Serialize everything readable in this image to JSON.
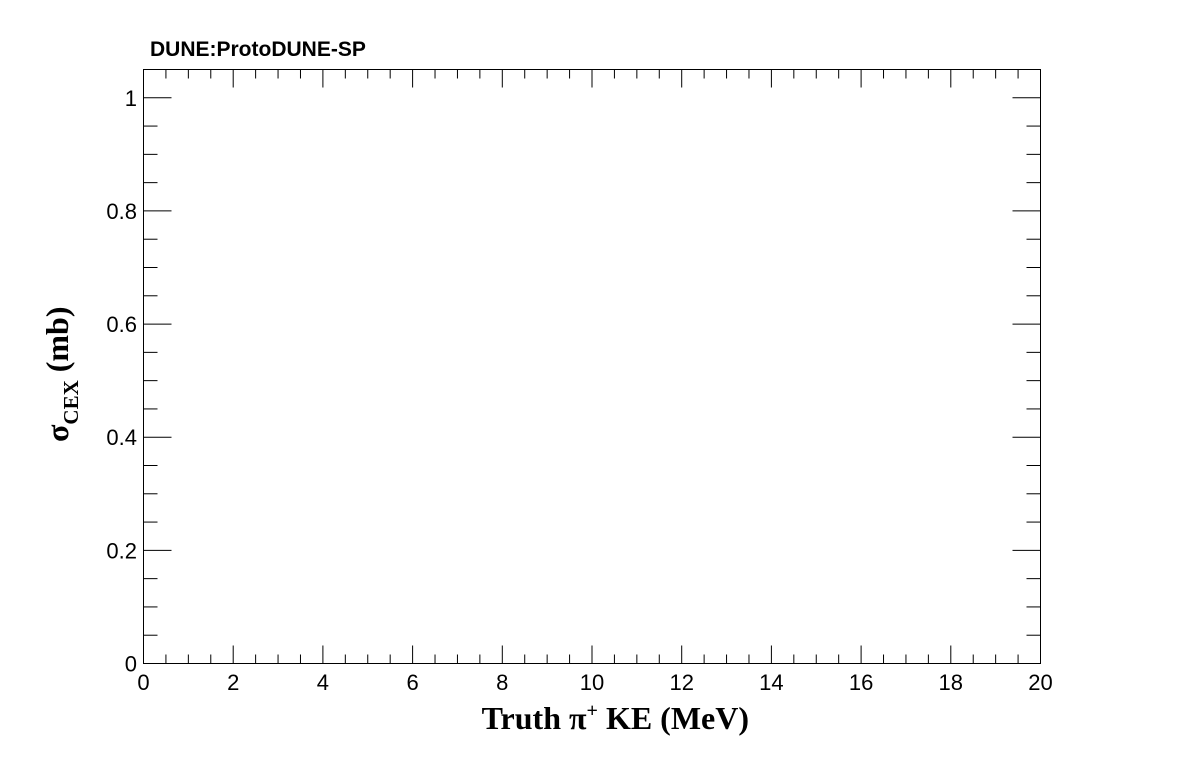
{
  "chart_data": {
    "type": "scatter",
    "title": "DUNE:ProtoDUNE-SP",
    "xlabel": {
      "main": "Truth  π",
      "superscript": "+",
      "rest": " KE (MeV)"
    },
    "ylabel": {
      "symbol": "σ",
      "subscript": "CEX",
      "rest": " (mb)"
    },
    "xlim": [
      0,
      20
    ],
    "ylim": [
      0,
      1.05
    ],
    "x_ticks": [
      "0",
      "2",
      "4",
      "6",
      "8",
      "10",
      "12",
      "14",
      "16",
      "18",
      "20"
    ],
    "y_ticks": [
      "0",
      "0.2",
      "0.4",
      "0.6",
      "0.8",
      "1"
    ],
    "series": [],
    "grid": false,
    "legend": "none"
  }
}
